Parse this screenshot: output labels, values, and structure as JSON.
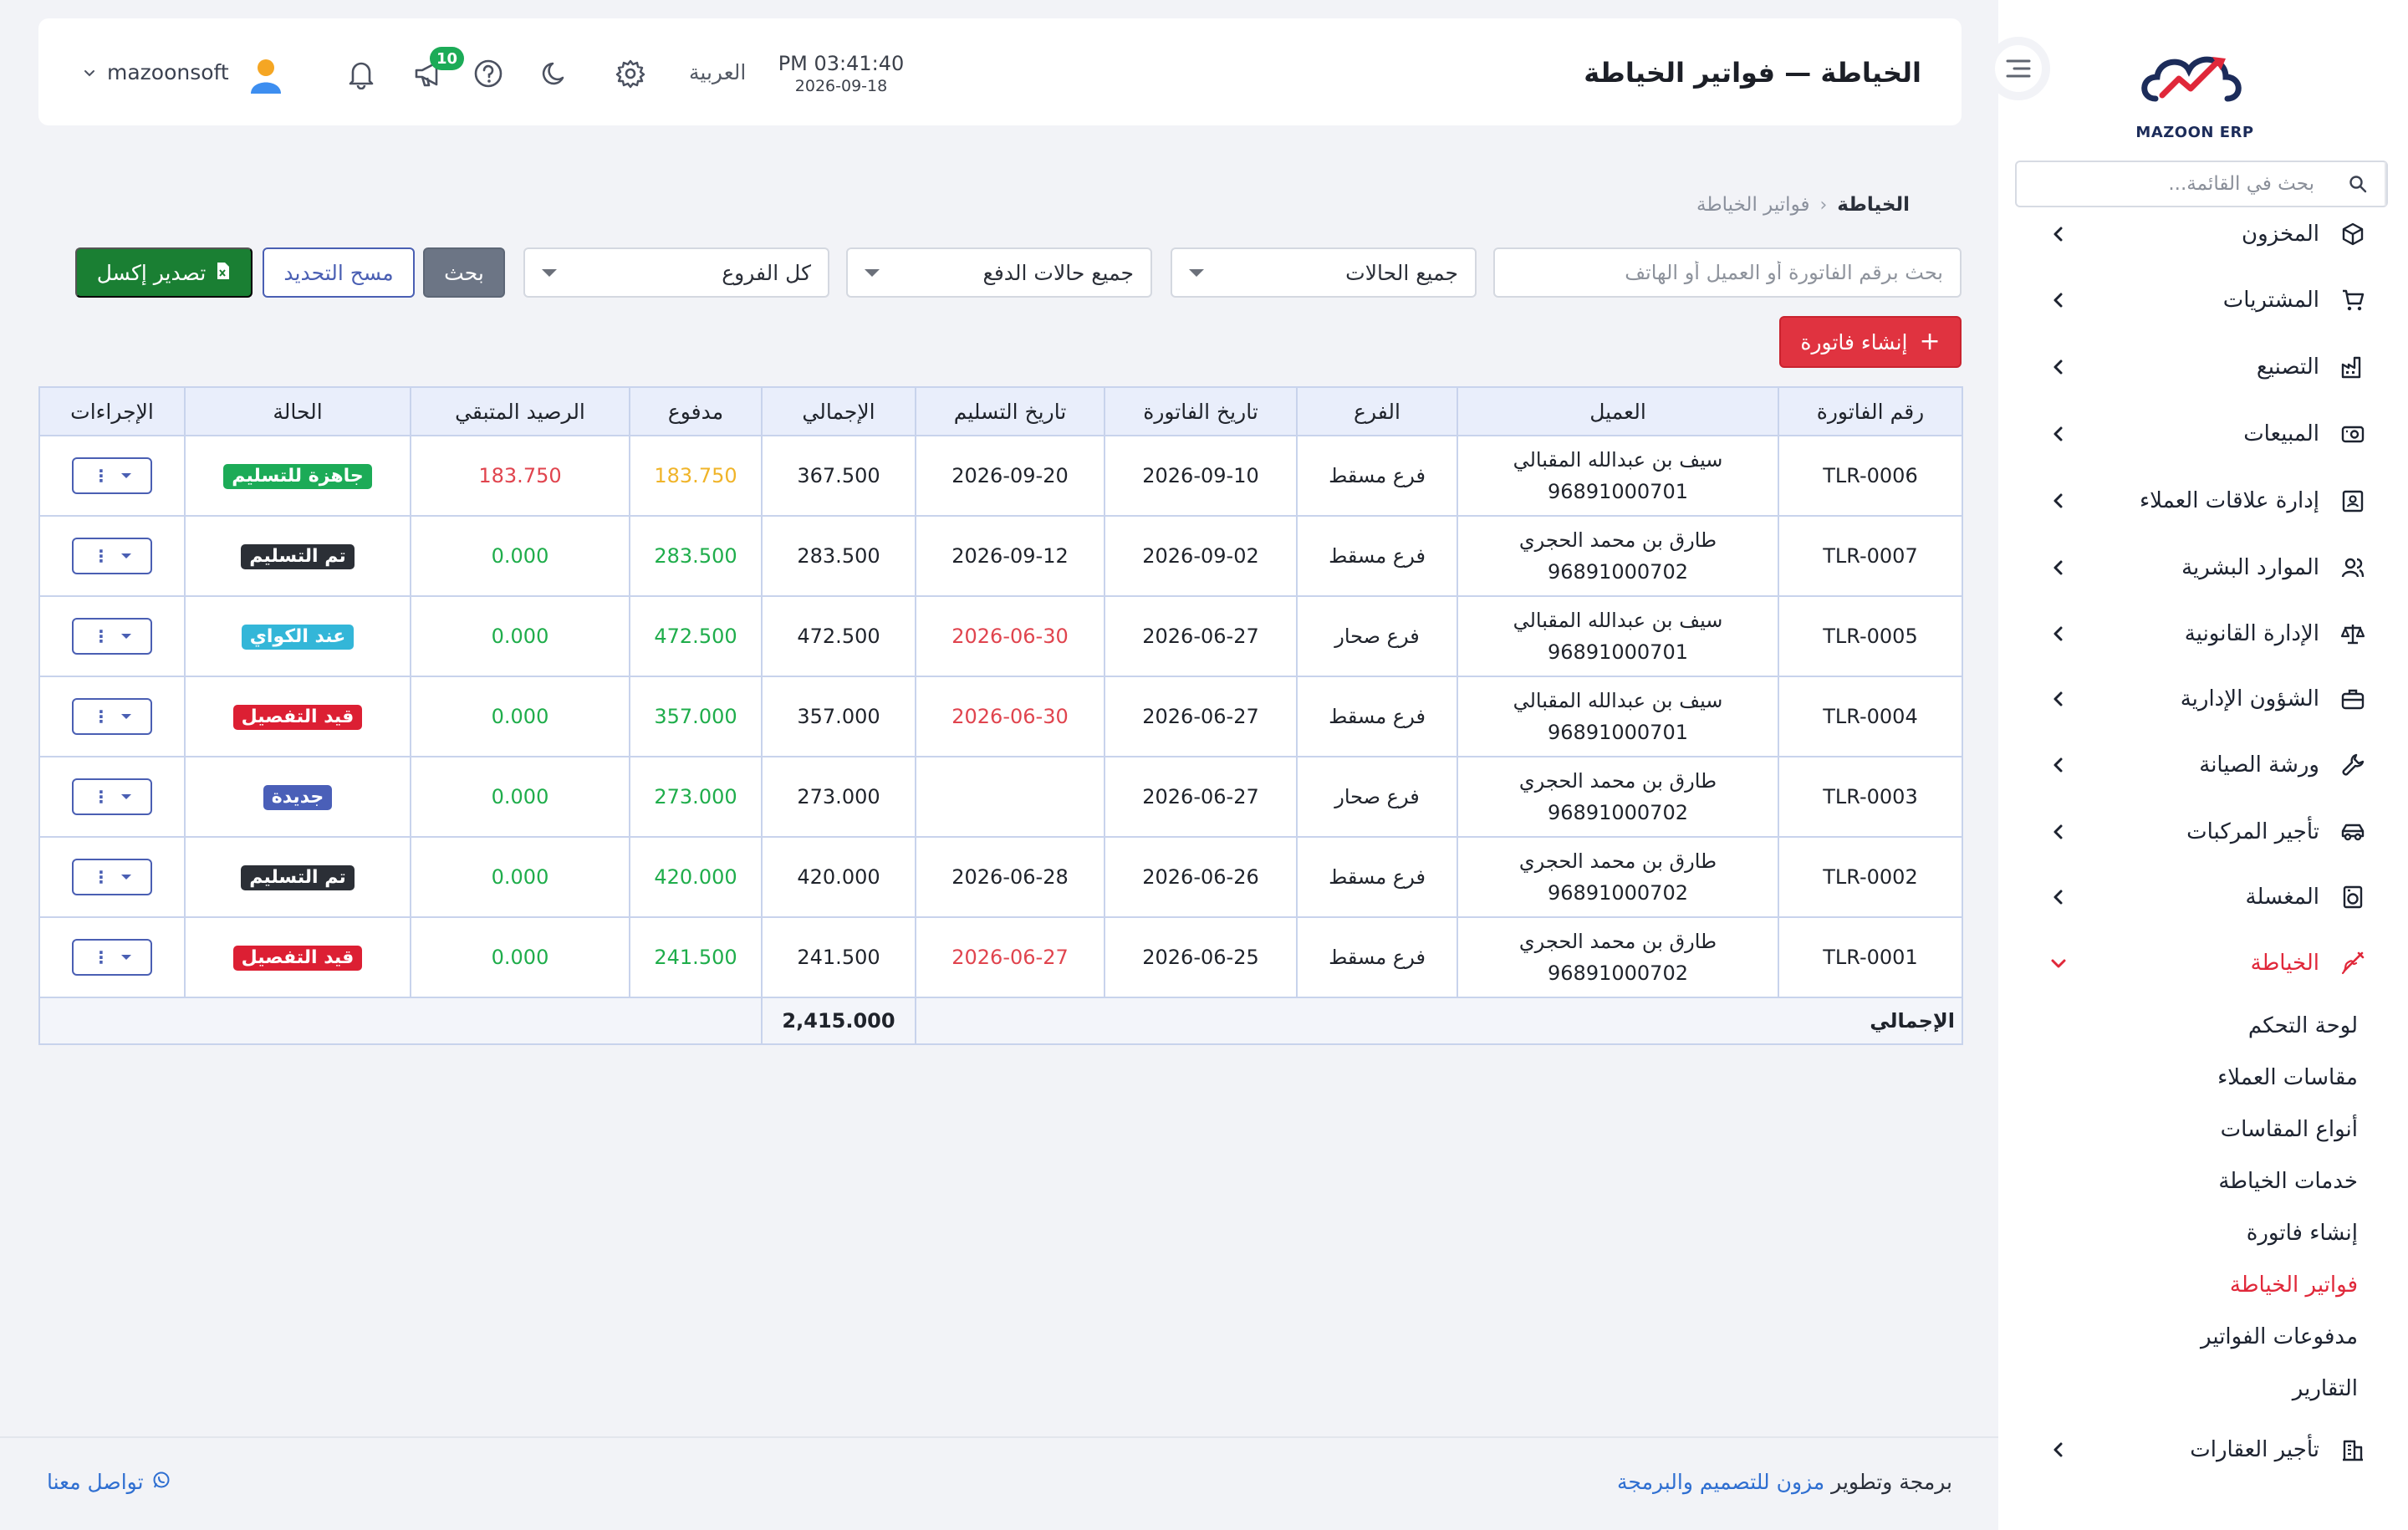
{
  "sidebar": {
    "logo_text": "MAZOON ERP",
    "search_placeholder": "بحث في القائمة...",
    "items": [
      {
        "label": "المخزون",
        "icon": "box-icon"
      },
      {
        "label": "المشتريات",
        "icon": "cart-icon"
      },
      {
        "label": "التصنيع",
        "icon": "factory-icon"
      },
      {
        "label": "المبيعات",
        "icon": "cash-register-icon"
      },
      {
        "label": "إدارة علاقات العملاء",
        "icon": "contact-card-icon"
      },
      {
        "label": "الموارد البشرية",
        "icon": "users-icon"
      },
      {
        "label": "الإدارة القانونية",
        "icon": "scales-icon"
      },
      {
        "label": "الشؤون الإدارية",
        "icon": "briefcase-icon"
      },
      {
        "label": "ورشة الصيانة",
        "icon": "wrench-icon"
      },
      {
        "label": "تأجير المركبات",
        "icon": "car-icon"
      },
      {
        "label": "المغسلة",
        "icon": "washer-icon"
      },
      {
        "label": "الخياطة",
        "icon": "needle-icon"
      }
    ],
    "sub_items": [
      "لوحة التحكم",
      "مقاسات العملاء",
      "أنواع المقاسات",
      "خدمات الخياطة",
      "إنشاء فاتورة",
      "فواتير الخياطة",
      "مدفوعات الفواتير",
      "التقارير"
    ],
    "last_item": {
      "label": "تأجير العقارات",
      "icon": "building-icon"
    }
  },
  "header": {
    "title": "الخياطة — فواتير الخياطة",
    "time": "PM 03:41:40",
    "date": "2026-09-18",
    "language": "العربية",
    "notification_count": "10",
    "user": "mazoonsoft"
  },
  "breadcrumb": {
    "root": "الخياطة",
    "current": "فواتير الخياطة"
  },
  "filters": {
    "search_placeholder": "بحث برقم الفاتورة أو العميل أو الهاتف",
    "status": "جميع الحالات",
    "payment_status": "جميع حالات الدفع",
    "branch": "كل الفروع",
    "search_btn": "بحث",
    "reset_btn": "مسح التحديد",
    "export_btn": "تصدير إكسل",
    "create_btn": "إنشاء فاتورة"
  },
  "table": {
    "headers": [
      "رقم الفاتورة",
      "العميل",
      "الفرع",
      "تاريخ الفاتورة",
      "تاريخ التسليم",
      "الإجمالي",
      "مدفوع",
      "الرصيد المتبقي",
      "الحالة",
      "الإجراءات"
    ],
    "rows": [
      {
        "invoice": "TLR-0006",
        "customer": "سيف بن عبدالله المقبالي",
        "phone": "96891000701",
        "branch": "فرع مسقط",
        "invoice_date": "2026-09-10",
        "delivery_date": "2026-09-20",
        "delivery_overdue": false,
        "total": "367.500",
        "paid": "183.750",
        "paid_color": "orange",
        "balance": "183.750",
        "balance_color": "red",
        "status": "جاهزة للتسليم",
        "status_color": "#1cab57"
      },
      {
        "invoice": "TLR-0007",
        "customer": "طارق بن محمد الحجري",
        "phone": "96891000702",
        "branch": "فرع مسقط",
        "invoice_date": "2026-09-02",
        "delivery_date": "2026-09-12",
        "delivery_overdue": false,
        "total": "283.500",
        "paid": "283.500",
        "paid_color": "green",
        "balance": "0.000",
        "balance_color": "green",
        "status": "تم التسليم",
        "status_color": "#2b2f36"
      },
      {
        "invoice": "TLR-0005",
        "customer": "سيف بن عبدالله المقبالي",
        "phone": "96891000701",
        "branch": "فرع صحار",
        "invoice_date": "2026-06-27",
        "delivery_date": "2026-06-30",
        "delivery_overdue": true,
        "total": "472.500",
        "paid": "472.500",
        "paid_color": "green",
        "balance": "0.000",
        "balance_color": "green",
        "status": "عند الكواي",
        "status_color": "#33b6d8"
      },
      {
        "invoice": "TLR-0004",
        "customer": "سيف بن عبدالله المقبالي",
        "phone": "96891000701",
        "branch": "فرع مسقط",
        "invoice_date": "2026-06-27",
        "delivery_date": "2026-06-30",
        "delivery_overdue": true,
        "total": "357.000",
        "paid": "357.000",
        "paid_color": "green",
        "balance": "0.000",
        "balance_color": "green",
        "status": "قيد التفصيل",
        "status_color": "#dc1f33"
      },
      {
        "invoice": "TLR-0003",
        "customer": "طارق بن محمد الحجري",
        "phone": "96891000702",
        "branch": "فرع صحار",
        "invoice_date": "2026-06-27",
        "delivery_date": "",
        "delivery_overdue": false,
        "total": "273.000",
        "paid": "273.000",
        "paid_color": "green",
        "balance": "0.000",
        "balance_color": "green",
        "status": "جديدة",
        "status_color": "#4a5fb8"
      },
      {
        "invoice": "TLR-0002",
        "customer": "طارق بن محمد الحجري",
        "phone": "96891000702",
        "branch": "فرع مسقط",
        "invoice_date": "2026-06-26",
        "delivery_date": "2026-06-28",
        "delivery_overdue": false,
        "total": "420.000",
        "paid": "420.000",
        "paid_color": "green",
        "balance": "0.000",
        "balance_color": "green",
        "status": "تم التسليم",
        "status_color": "#2b2f36"
      },
      {
        "invoice": "TLR-0001",
        "customer": "طارق بن محمد الحجري",
        "phone": "96891000702",
        "branch": "فرع مسقط",
        "invoice_date": "2026-06-25",
        "delivery_date": "2026-06-27",
        "delivery_overdue": true,
        "total": "241.500",
        "paid": "241.500",
        "paid_color": "green",
        "balance": "0.000",
        "balance_color": "green",
        "status": "قيد التفصيل",
        "status_color": "#dc1f33"
      }
    ],
    "total_label": "الإجمالي",
    "total_value": "2,415.000"
  },
  "footer": {
    "credit_prefix": "برمجة وتطوير",
    "credit_link": "مزون للتصميم والبرمجة",
    "contact": "تواصل معنا"
  },
  "colors": {
    "accent": "#e0283a",
    "primary": "#4a5fb3",
    "export": "#1a7f33"
  }
}
